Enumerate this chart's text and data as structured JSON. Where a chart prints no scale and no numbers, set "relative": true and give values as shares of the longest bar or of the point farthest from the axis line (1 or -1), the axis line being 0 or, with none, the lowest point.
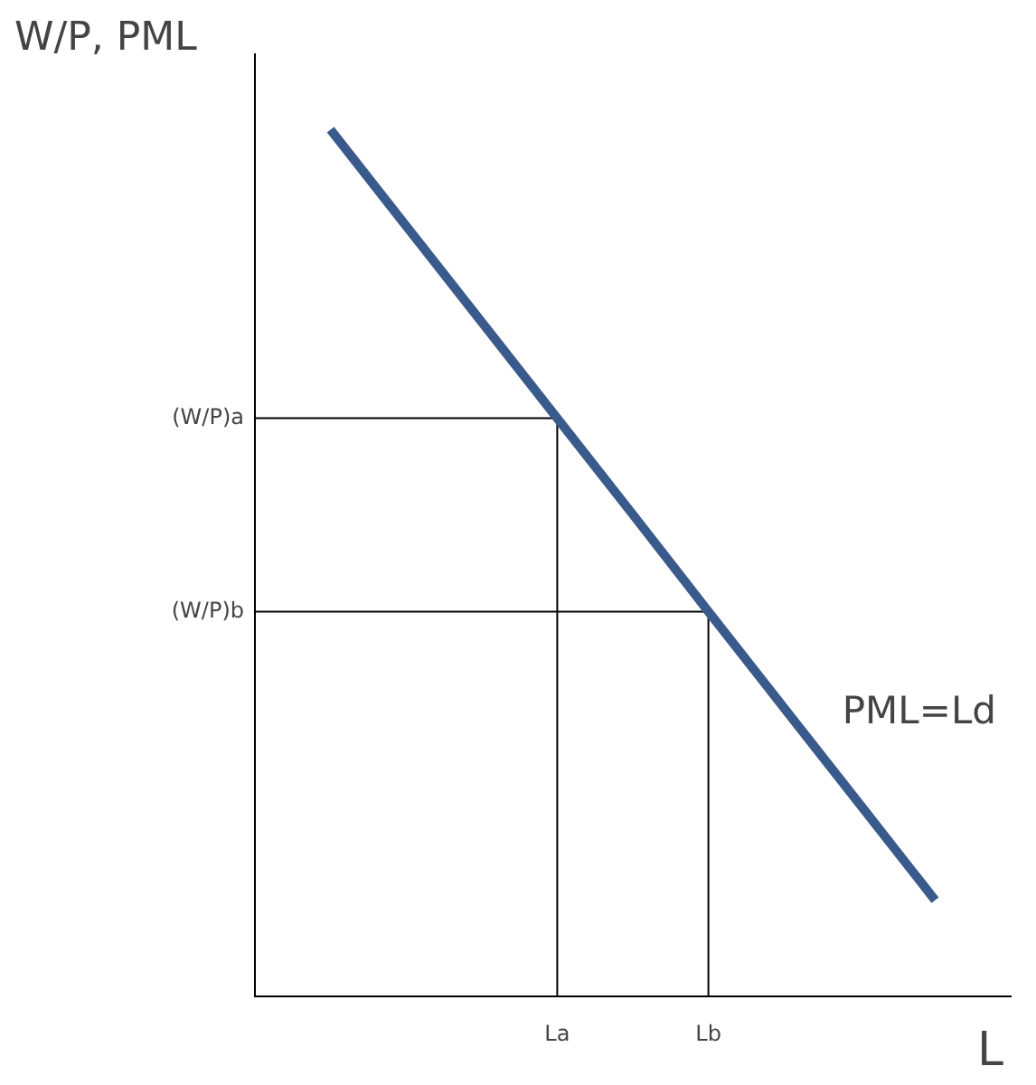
{
  "chart_data": {
    "type": "line",
    "ylabel": "W/P, PML",
    "xlabel": "L",
    "relative": true,
    "categories": [
      null,
      null,
      null,
      null,
      "La",
      null,
      "Lb",
      null,
      null,
      null,
      null
    ],
    "series": [
      {
        "color": "#3a5a8c",
        "values": [
          null,
          1,
          0.889,
          0.778,
          0.667,
          0.556,
          0.444,
          0.333,
          0.222,
          0.111,
          null
        ]
      }
    ],
    "ref_lines": [
      {
        "axis": "y",
        "value": 0.667,
        "label": "(W/P)a",
        "color": "#000000"
      },
      {
        "axis": "y",
        "value": 0.444,
        "label": "(W/P)b",
        "color": "#000000"
      },
      {
        "axis": "x",
        "value": "La",
        "color": "#000000"
      },
      {
        "axis": "x",
        "value": "Lb",
        "color": "#000000"
      }
    ],
    "annotations": [
      "PML=Ld"
    ],
    "grid": false,
    "legend": false,
    "marker": "none",
    "line_style": "solid"
  }
}
